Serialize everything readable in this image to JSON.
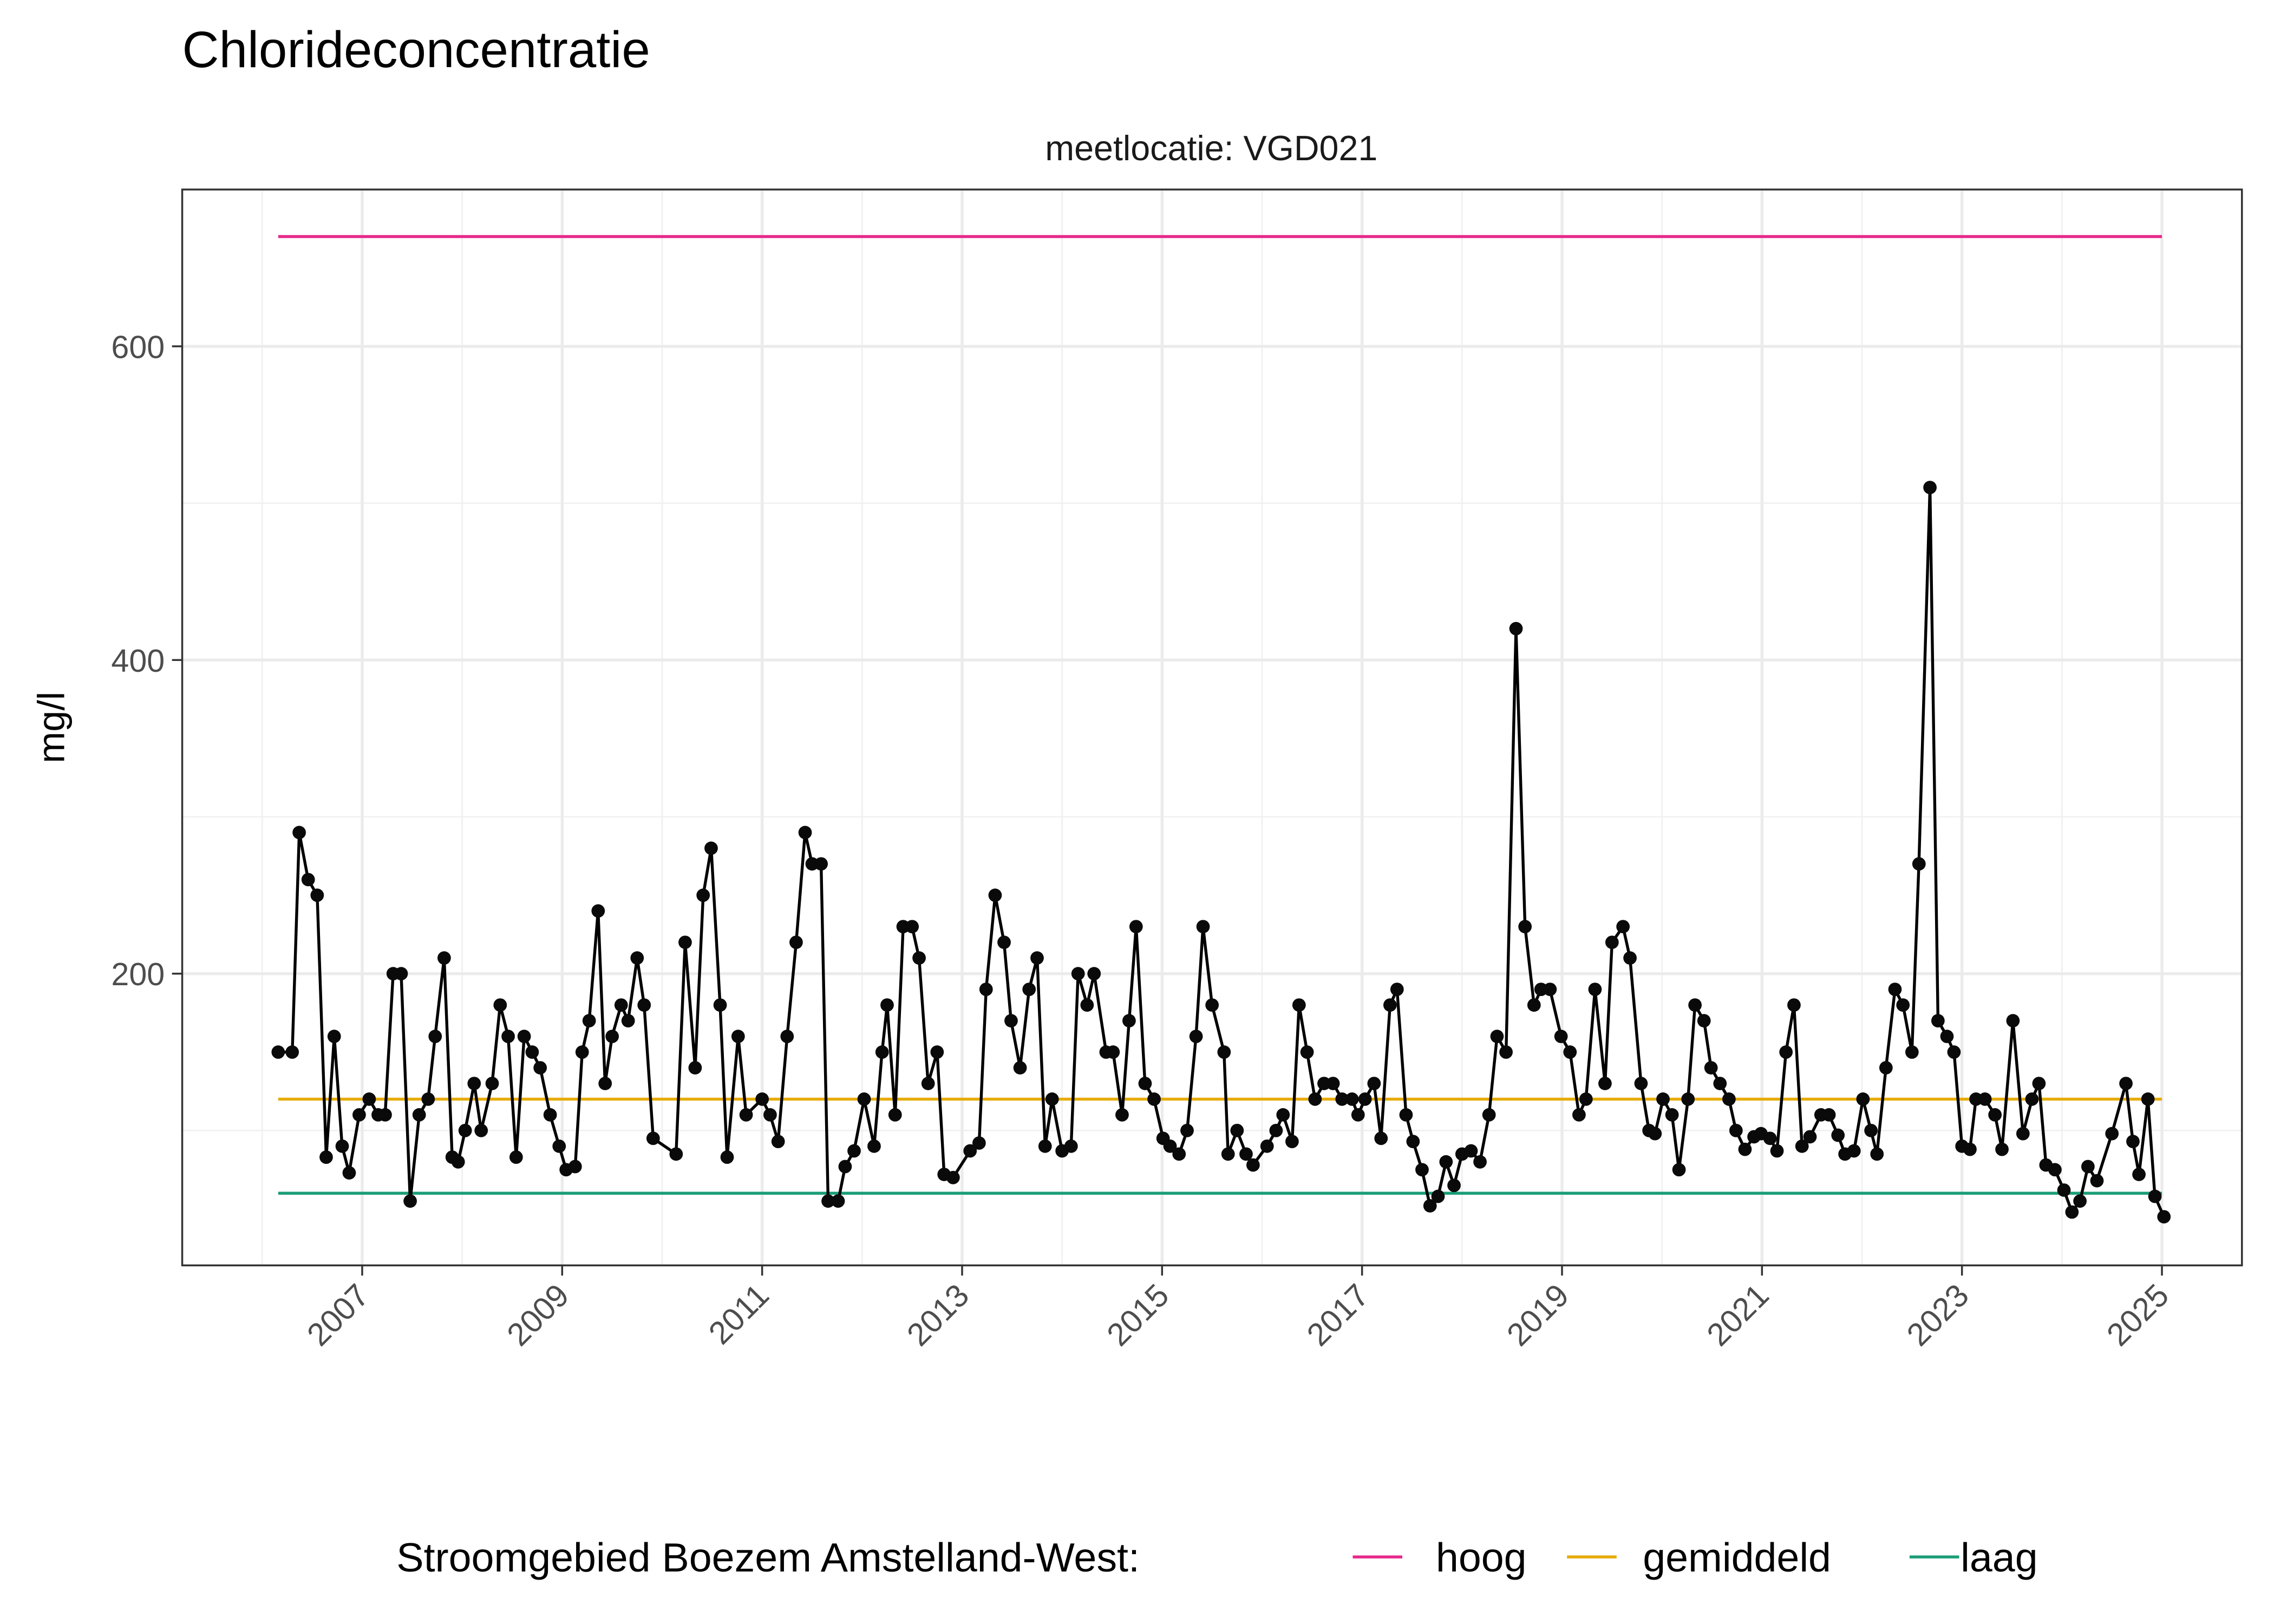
{
  "chart_data": {
    "type": "line",
    "title": "Chlorideconcentratie",
    "facet_label": "meetlocatie: VGD021",
    "xlabel": "",
    "ylabel": "mg/l",
    "xlim": [
      2005.2,
      2025.8
    ],
    "ylim": [
      14,
      700
    ],
    "x_ticks": [
      "2007",
      "2009",
      "2011",
      "2013",
      "2015",
      "2017",
      "2019",
      "2021",
      "2023",
      "2025"
    ],
    "y_ticks": [
      200,
      400,
      600
    ],
    "grid": true,
    "legend_position": "bottom",
    "legend_title": "Stroomgebied Boezem Amstelland-West:",
    "reference_lines": [
      {
        "name": "hoog",
        "value": 670,
        "color": "#e7298a"
      },
      {
        "name": "gemiddeld",
        "value": 120,
        "color": "#e6ab02"
      },
      {
        "name": "laag",
        "value": 60,
        "color": "#1b9e77"
      }
    ],
    "reference_range": [
      2006.16,
      2025.0
    ],
    "series_color": "#000000",
    "points": [
      [
        2006.16,
        150
      ],
      [
        2006.3,
        150
      ],
      [
        2006.37,
        290
      ],
      [
        2006.46,
        260
      ],
      [
        2006.55,
        250
      ],
      [
        2006.64,
        83
      ],
      [
        2006.72,
        160
      ],
      [
        2006.8,
        90
      ],
      [
        2006.87,
        73
      ],
      [
        2006.97,
        110
      ],
      [
        2007.07,
        120
      ],
      [
        2007.16,
        110
      ],
      [
        2007.23,
        110
      ],
      [
        2007.31,
        200
      ],
      [
        2007.39,
        200
      ],
      [
        2007.48,
        55
      ],
      [
        2007.57,
        110
      ],
      [
        2007.66,
        120
      ],
      [
        2007.73,
        160
      ],
      [
        2007.82,
        210
      ],
      [
        2007.9,
        83
      ],
      [
        2007.96,
        80
      ],
      [
        2008.03,
        100
      ],
      [
        2008.12,
        130
      ],
      [
        2008.19,
        100
      ],
      [
        2008.3,
        130
      ],
      [
        2008.38,
        180
      ],
      [
        2008.46,
        160
      ],
      [
        2008.54,
        83
      ],
      [
        2008.62,
        160
      ],
      [
        2008.7,
        150
      ],
      [
        2008.78,
        140
      ],
      [
        2008.88,
        110
      ],
      [
        2008.97,
        90
      ],
      [
        2009.04,
        75
      ],
      [
        2009.13,
        77
      ],
      [
        2009.2,
        150
      ],
      [
        2009.27,
        170
      ],
      [
        2009.36,
        240
      ],
      [
        2009.43,
        130
      ],
      [
        2009.5,
        160
      ],
      [
        2009.59,
        180
      ],
      [
        2009.66,
        170
      ],
      [
        2009.75,
        210
      ],
      [
        2009.82,
        180
      ],
      [
        2009.91,
        95
      ],
      [
        2010.14,
        85
      ],
      [
        2010.23,
        220
      ],
      [
        2010.33,
        140
      ],
      [
        2010.41,
        250
      ],
      [
        2010.49,
        280
      ],
      [
        2010.58,
        180
      ],
      [
        2010.65,
        83
      ],
      [
        2010.76,
        160
      ],
      [
        2010.84,
        110
      ],
      [
        2011.0,
        120
      ],
      [
        2011.08,
        110
      ],
      [
        2011.16,
        93
      ],
      [
        2011.25,
        160
      ],
      [
        2011.34,
        220
      ],
      [
        2011.43,
        290
      ],
      [
        2011.5,
        270
      ],
      [
        2011.59,
        270
      ],
      [
        2011.66,
        55
      ],
      [
        2011.76,
        55
      ],
      [
        2011.83,
        77
      ],
      [
        2011.92,
        87
      ],
      [
        2012.02,
        120
      ],
      [
        2012.12,
        90
      ],
      [
        2012.2,
        150
      ],
      [
        2012.25,
        180
      ],
      [
        2012.33,
        110
      ],
      [
        2012.41,
        230
      ],
      [
        2012.5,
        230
      ],
      [
        2012.57,
        210
      ],
      [
        2012.66,
        130
      ],
      [
        2012.75,
        150
      ],
      [
        2012.82,
        72
      ],
      [
        2012.91,
        70
      ],
      [
        2013.08,
        87
      ],
      [
        2013.17,
        92
      ],
      [
        2013.24,
        190
      ],
      [
        2013.33,
        250
      ],
      [
        2013.42,
        220
      ],
      [
        2013.49,
        170
      ],
      [
        2013.58,
        140
      ],
      [
        2013.67,
        190
      ],
      [
        2013.75,
        210
      ],
      [
        2013.83,
        90
      ],
      [
        2013.9,
        120
      ],
      [
        2014.0,
        87
      ],
      [
        2014.09,
        90
      ],
      [
        2014.16,
        200
      ],
      [
        2014.25,
        180
      ],
      [
        2014.32,
        200
      ],
      [
        2014.44,
        150
      ],
      [
        2014.51,
        150
      ],
      [
        2014.6,
        110
      ],
      [
        2014.67,
        170
      ],
      [
        2014.74,
        230
      ],
      [
        2014.83,
        130
      ],
      [
        2014.92,
        120
      ],
      [
        2015.01,
        95
      ],
      [
        2015.08,
        90
      ],
      [
        2015.17,
        85
      ],
      [
        2015.25,
        100
      ],
      [
        2015.34,
        160
      ],
      [
        2015.41,
        230
      ],
      [
        2015.5,
        180
      ],
      [
        2015.62,
        150
      ],
      [
        2015.66,
        85
      ],
      [
        2015.75,
        100
      ],
      [
        2015.84,
        85
      ],
      [
        2015.91,
        78
      ],
      [
        2016.05,
        90
      ],
      [
        2016.14,
        100
      ],
      [
        2016.21,
        110
      ],
      [
        2016.3,
        93
      ],
      [
        2016.37,
        180
      ],
      [
        2016.45,
        150
      ],
      [
        2016.53,
        120
      ],
      [
        2016.62,
        130
      ],
      [
        2016.71,
        130
      ],
      [
        2016.8,
        120
      ],
      [
        2016.9,
        120
      ],
      [
        2016.96,
        110
      ],
      [
        2017.03,
        120
      ],
      [
        2017.12,
        130
      ],
      [
        2017.19,
        95
      ],
      [
        2017.28,
        180
      ],
      [
        2017.35,
        190
      ],
      [
        2017.44,
        110
      ],
      [
        2017.51,
        93
      ],
      [
        2017.6,
        75
      ],
      [
        2017.68,
        52
      ],
      [
        2017.76,
        58
      ],
      [
        2017.84,
        80
      ],
      [
        2017.92,
        65
      ],
      [
        2018.0,
        85
      ],
      [
        2018.09,
        87
      ],
      [
        2018.18,
        80
      ],
      [
        2018.27,
        110
      ],
      [
        2018.35,
        160
      ],
      [
        2018.44,
        150
      ],
      [
        2018.54,
        420
      ],
      [
        2018.63,
        230
      ],
      [
        2018.72,
        180
      ],
      [
        2018.79,
        190
      ],
      [
        2018.88,
        190
      ],
      [
        2018.99,
        160
      ],
      [
        2019.08,
        150
      ],
      [
        2019.17,
        110
      ],
      [
        2019.24,
        120
      ],
      [
        2019.33,
        190
      ],
      [
        2019.43,
        130
      ],
      [
        2019.5,
        220
      ],
      [
        2019.61,
        230
      ],
      [
        2019.68,
        210
      ],
      [
        2019.79,
        130
      ],
      [
        2019.87,
        100
      ],
      [
        2019.93,
        98
      ],
      [
        2020.01,
        120
      ],
      [
        2020.1,
        110
      ],
      [
        2020.17,
        75
      ],
      [
        2020.26,
        120
      ],
      [
        2020.33,
        180
      ],
      [
        2020.42,
        170
      ],
      [
        2020.49,
        140
      ],
      [
        2020.58,
        130
      ],
      [
        2020.67,
        120
      ],
      [
        2020.74,
        100
      ],
      [
        2020.83,
        88
      ],
      [
        2020.92,
        96
      ],
      [
        2020.99,
        98
      ],
      [
        2021.08,
        95
      ],
      [
        2021.15,
        87
      ],
      [
        2021.24,
        150
      ],
      [
        2021.32,
        180
      ],
      [
        2021.4,
        90
      ],
      [
        2021.48,
        96
      ],
      [
        2021.59,
        110
      ],
      [
        2021.67,
        110
      ],
      [
        2021.76,
        97
      ],
      [
        2021.83,
        85
      ],
      [
        2021.92,
        87
      ],
      [
        2022.01,
        120
      ],
      [
        2022.09,
        100
      ],
      [
        2022.15,
        85
      ],
      [
        2022.24,
        140
      ],
      [
        2022.33,
        190
      ],
      [
        2022.41,
        180
      ],
      [
        2022.5,
        150
      ],
      [
        2022.57,
        270
      ],
      [
        2022.68,
        510
      ],
      [
        2022.76,
        170
      ],
      [
        2022.85,
        160
      ],
      [
        2022.92,
        150
      ],
      [
        2023.0,
        90
      ],
      [
        2023.08,
        88
      ],
      [
        2023.14,
        120
      ],
      [
        2023.23,
        120
      ],
      [
        2023.33,
        110
      ],
      [
        2023.4,
        88
      ],
      [
        2023.51,
        170
      ],
      [
        2023.61,
        98
      ],
      [
        2023.7,
        120
      ],
      [
        2023.77,
        130
      ],
      [
        2023.84,
        78
      ],
      [
        2023.93,
        75
      ],
      [
        2024.02,
        62
      ],
      [
        2024.1,
        48
      ],
      [
        2024.18,
        55
      ],
      [
        2024.26,
        77
      ],
      [
        2024.35,
        68
      ],
      [
        2024.5,
        98
      ],
      [
        2024.64,
        130
      ],
      [
        2024.71,
        93
      ],
      [
        2024.77,
        72
      ],
      [
        2024.86,
        120
      ],
      [
        2024.93,
        58
      ],
      [
        2025.02,
        45
      ]
    ]
  }
}
